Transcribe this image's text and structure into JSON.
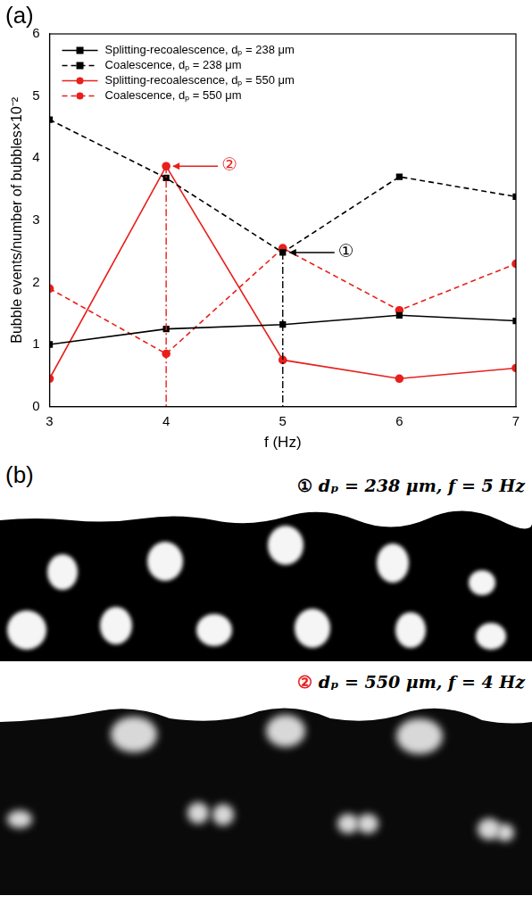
{
  "chart_data": {
    "type": "line",
    "panel_label": "(a)",
    "x_label": "f (Hz)",
    "y_label": "Bubble events/number of bubbles×10⁻²",
    "x": [
      3,
      4,
      5,
      6,
      7
    ],
    "series": [
      {
        "name": "Splitting-recoalescence, dₚ = 238 μm",
        "color": "#000000",
        "marker": "square",
        "line_style": "solid",
        "values": [
          1.0,
          1.25,
          1.32,
          1.47,
          1.38
        ]
      },
      {
        "name": "Coalescence, dₚ = 238 μm",
        "color": "#000000",
        "marker": "square",
        "line_style": "dashed",
        "values": [
          4.62,
          3.68,
          2.48,
          3.7,
          3.38
        ]
      },
      {
        "name": "Splitting-recoalescence, dₚ = 550 μm",
        "color": "#e8201c",
        "marker": "circle",
        "line_style": "solid",
        "values": [
          0.45,
          3.87,
          0.75,
          0.45,
          0.62
        ]
      },
      {
        "name": "Coalescence, dₚ = 550 μm",
        "color": "#e8201c",
        "marker": "circle",
        "line_style": "dashed",
        "values": [
          1.9,
          0.85,
          2.55,
          1.55,
          2.3
        ]
      }
    ],
    "xlim": [
      3,
      7
    ],
    "xticks": [
      3,
      4,
      5,
      6,
      7
    ],
    "ylim": [
      0,
      6
    ],
    "yticks": [
      0,
      1,
      2,
      3,
      4,
      5,
      6
    ],
    "grid": false,
    "legend": "upper left",
    "annotations": [
      {
        "text": "①",
        "x": 5,
        "y": 2.48,
        "color": "#000000"
      },
      {
        "text": "②",
        "x": 4,
        "y": 3.87,
        "color": "#e8201c"
      }
    ]
  },
  "panel_b": {
    "label": "(b)",
    "images": [
      {
        "marker": "①",
        "marker_color": "#000000",
        "caption": "dₚ = 238 μm, f = 5 Hz"
      },
      {
        "marker": "②",
        "marker_color": "#e8201c",
        "caption": "dₚ = 550 μm, f = 4 Hz"
      }
    ]
  }
}
